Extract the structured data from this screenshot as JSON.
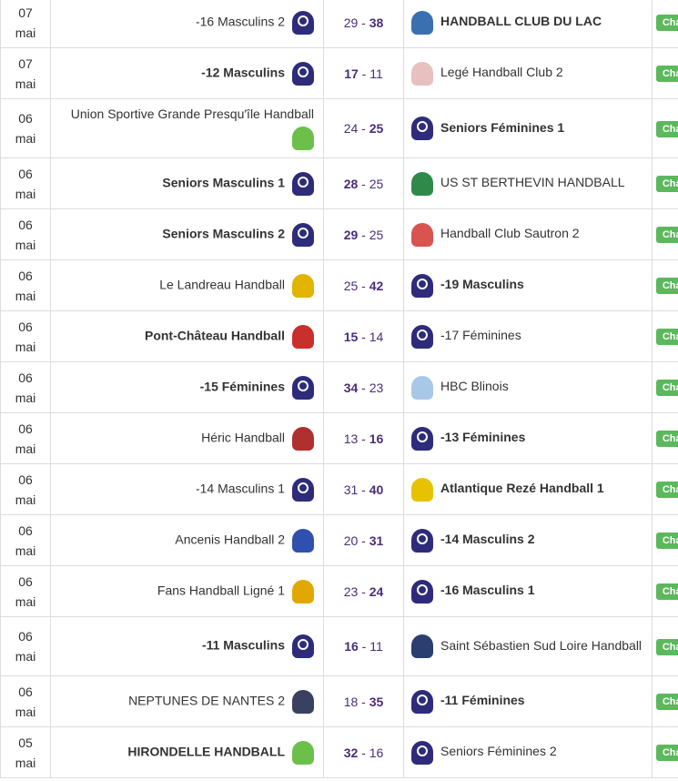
{
  "badge_label": "Champ.",
  "colors": {
    "score": "#4a2d7a",
    "badge": "#5cb85c",
    "club_logo": "#2e2c7a"
  },
  "rows": [
    {
      "day": "07",
      "month": "mai",
      "home": "-16 Masculins 2",
      "home_bold": false,
      "home_logo": "#2e2c7a",
      "home_club": true,
      "score_home": "29",
      "score_away": "38",
      "away": "HANDBALL CLUB DU LAC",
      "away_bold": true,
      "away_logo": "#3a6fb0",
      "away_club": false
    },
    {
      "day": "07",
      "month": "mai",
      "home": "-12 Masculins",
      "home_bold": true,
      "home_logo": "#2e2c7a",
      "home_club": true,
      "score_home": "17",
      "score_away": "11",
      "away": "Legé Handball Club 2",
      "away_bold": false,
      "away_logo": "#e8c0c0",
      "away_club": false
    },
    {
      "day": "06",
      "month": "mai",
      "home": "Union Sportive Grande Presqu'île Handball",
      "home_bold": false,
      "home_logo": "#6cc04a",
      "home_club": false,
      "score_home": "24",
      "score_away": "25",
      "away": "Seniors Féminines 1",
      "away_bold": true,
      "away_logo": "#2e2c7a",
      "away_club": true,
      "tall": true
    },
    {
      "day": "06",
      "month": "mai",
      "home": "Seniors Masculins 1",
      "home_bold": true,
      "home_logo": "#2e2c7a",
      "home_club": true,
      "score_home": "28",
      "score_away": "25",
      "away": "US ST BERTHEVIN HANDBALL",
      "away_bold": false,
      "away_logo": "#2f8a4a",
      "away_club": false
    },
    {
      "day": "06",
      "month": "mai",
      "home": "Seniors Masculins 2",
      "home_bold": true,
      "home_logo": "#2e2c7a",
      "home_club": true,
      "score_home": "29",
      "score_away": "25",
      "away": "Handball Club Sautron 2",
      "away_bold": false,
      "away_logo": "#d9534f",
      "away_club": false
    },
    {
      "day": "06",
      "month": "mai",
      "home": "Le Landreau Handball",
      "home_bold": false,
      "home_logo": "#e0b400",
      "home_club": false,
      "score_home": "25",
      "score_away": "42",
      "away": "-19 Masculins",
      "away_bold": true,
      "away_logo": "#2e2c7a",
      "away_club": true
    },
    {
      "day": "06",
      "month": "mai",
      "home": "Pont-Château Handball",
      "home_bold": true,
      "home_logo": "#c9302c",
      "home_club": false,
      "score_home": "15",
      "score_away": "14",
      "away": "-17 Féminines",
      "away_bold": false,
      "away_logo": "#2e2c7a",
      "away_club": true
    },
    {
      "day": "06",
      "month": "mai",
      "home": "-15 Féminines",
      "home_bold": true,
      "home_logo": "#2e2c7a",
      "home_club": true,
      "score_home": "34",
      "score_away": "23",
      "away": "HBC Blinois",
      "away_bold": false,
      "away_logo": "#a8c8e8",
      "away_club": false
    },
    {
      "day": "06",
      "month": "mai",
      "home": "Héric Handball",
      "home_bold": false,
      "home_logo": "#b03030",
      "home_club": false,
      "score_home": "13",
      "score_away": "16",
      "away": "-13 Féminines",
      "away_bold": true,
      "away_logo": "#2e2c7a",
      "away_club": true
    },
    {
      "day": "06",
      "month": "mai",
      "home": "-14 Masculins 1",
      "home_bold": false,
      "home_logo": "#2e2c7a",
      "home_club": true,
      "score_home": "31",
      "score_away": "40",
      "away": "Atlantique Rezé Handball 1",
      "away_bold": true,
      "away_logo": "#e6c200",
      "away_club": false
    },
    {
      "day": "06",
      "month": "mai",
      "home": "Ancenis Handball 2",
      "home_bold": false,
      "home_logo": "#3050b0",
      "home_club": false,
      "score_home": "20",
      "score_away": "31",
      "away": "-14 Masculins 2",
      "away_bold": true,
      "away_logo": "#2e2c7a",
      "away_club": true
    },
    {
      "day": "06",
      "month": "mai",
      "home": "Fans Handball Ligné 1",
      "home_bold": false,
      "home_logo": "#e0a800",
      "home_club": false,
      "score_home": "23",
      "score_away": "24",
      "away": "-16 Masculins 1",
      "away_bold": true,
      "away_logo": "#2e2c7a",
      "away_club": true
    },
    {
      "day": "06",
      "month": "mai",
      "home": "-11 Masculins",
      "home_bold": true,
      "home_logo": "#2e2c7a",
      "home_club": true,
      "score_home": "16",
      "score_away": "11",
      "away": "Saint Sébastien Sud Loire Handball",
      "away_bold": false,
      "away_logo": "#2a3e70",
      "away_club": false,
      "tall": true
    },
    {
      "day": "06",
      "month": "mai",
      "home": "NEPTUNES DE NANTES 2",
      "home_bold": false,
      "home_logo": "#3a4060",
      "home_club": false,
      "score_home": "18",
      "score_away": "35",
      "away": "-11 Féminines",
      "away_bold": true,
      "away_logo": "#2e2c7a",
      "away_club": true
    },
    {
      "day": "05",
      "month": "mai",
      "home": "HIRONDELLE HANDBALL",
      "home_bold": true,
      "home_logo": "#6cc04a",
      "home_club": false,
      "score_home": "32",
      "score_away": "16",
      "away": "Seniors Féminines 2",
      "away_bold": false,
      "away_logo": "#2e2c7a",
      "away_club": true
    }
  ]
}
